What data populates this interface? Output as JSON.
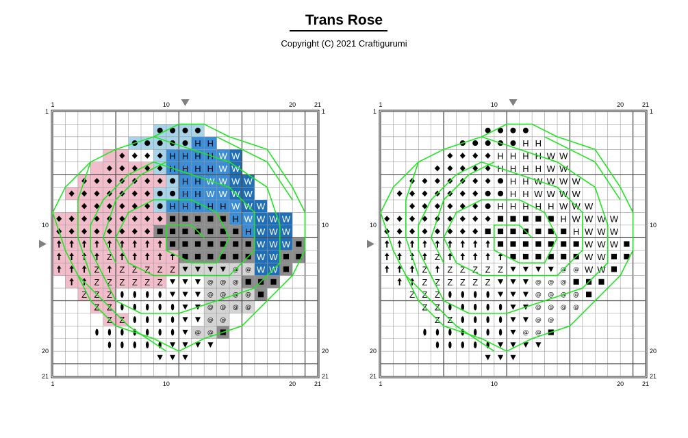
{
  "page": {
    "title": "Trans Rose",
    "copyright": "Copyright (C) 2021 Craftigurumi"
  },
  "grid": {
    "cols": 21,
    "rows": 21,
    "top_col_labels": [
      "1",
      "10",
      "20",
      "21"
    ],
    "bottom_col_labels": [
      "1",
      "10",
      "20",
      "21"
    ],
    "left_row_labels": [
      "1",
      "10",
      "20",
      "21"
    ],
    "right_row_labels": [
      "1",
      "10",
      "20",
      "21"
    ]
  },
  "colors": {
    "pink": "#f2bccb",
    "light_blue": "#a8d4ea",
    "blue": "#3a8dd6",
    "dark_blue": "#1f6fb8",
    "dark_gray": "#8c8c8c",
    "light_gray": "#d4d4d4",
    "outline": "#1ee61e",
    "grid_line": "#9a9a9a",
    "grid_major": "#4a4a4a"
  },
  "symbol_key": {
    "o": "filled-circle",
    "d": "filled-diamond",
    "u": "up-arrow",
    "Z": "letter-Z",
    "e": "filled-ellipse",
    "v": "down-triangle",
    "@": "at-sign",
    "s": "filled-square",
    "H": "letter-H",
    "W": "letter-W"
  },
  "pattern": [
    ".....................",
    "........oooo.........",
    "......oooooHH........",
    ".....ddddHHHHWW......",
    "....dddddHHHHWW......",
    "..dddddddoHHWWWW.....",
    ".dddddddooHHWWWW.....",
    "..ddddddoHHHHHWWW....",
    "dddddddddsssssHWWWW..",
    "ddddddddsssssssHWWW..",
    "uuuuuuuuusssssssWWWs.",
    "uuuuZuuuuussssssWWss.",
    "uuuZuZZZZZvvvv@@WWs..",
    ".uuZZZZZZvvv@@@sss...",
    "..ZZZeeeevvv@@@@s....",
    "...ZZeeeeevv@@@@.....",
    "....ZZeeeevv@@.......",
    "...eeeeeeev@@s.......",
    "....eeeeevvvv........",
    "........vvv..........",
    "....................."
  ],
  "color_regions": [
    {
      "color": "pink",
      "cells": [
        [
          3,
          4
        ],
        [
          3,
          5
        ],
        [
          4,
          3
        ],
        [
          4,
          4
        ],
        [
          4,
          5
        ],
        [
          4,
          6
        ],
        [
          4,
          7
        ],
        [
          5,
          2
        ],
        [
          5,
          3
        ],
        [
          5,
          4
        ],
        [
          5,
          5
        ],
        [
          5,
          6
        ],
        [
          5,
          7
        ],
        [
          5,
          8
        ],
        [
          6,
          1
        ],
        [
          6,
          2
        ],
        [
          6,
          3
        ],
        [
          6,
          4
        ],
        [
          6,
          5
        ],
        [
          6,
          6
        ],
        [
          6,
          7
        ],
        [
          7,
          2
        ],
        [
          7,
          3
        ],
        [
          7,
          4
        ],
        [
          7,
          5
        ],
        [
          7,
          6
        ],
        [
          7,
          7
        ],
        [
          8,
          0
        ],
        [
          8,
          1
        ],
        [
          8,
          2
        ],
        [
          8,
          3
        ],
        [
          8,
          4
        ],
        [
          8,
          5
        ],
        [
          8,
          6
        ],
        [
          8,
          7
        ],
        [
          8,
          8
        ],
        [
          9,
          0
        ],
        [
          9,
          1
        ],
        [
          9,
          2
        ],
        [
          9,
          3
        ],
        [
          9,
          4
        ],
        [
          9,
          5
        ],
        [
          9,
          6
        ],
        [
          9,
          7
        ],
        [
          10,
          0
        ],
        [
          10,
          1
        ],
        [
          10,
          2
        ],
        [
          10,
          3
        ],
        [
          10,
          4
        ],
        [
          10,
          5
        ],
        [
          10,
          6
        ],
        [
          10,
          7
        ],
        [
          10,
          8
        ],
        [
          11,
          0
        ],
        [
          11,
          1
        ],
        [
          11,
          2
        ],
        [
          11,
          3
        ],
        [
          11,
          4
        ],
        [
          11,
          5
        ],
        [
          11,
          6
        ],
        [
          11,
          7
        ],
        [
          11,
          8
        ],
        [
          11,
          9
        ],
        [
          12,
          0
        ],
        [
          12,
          1
        ],
        [
          12,
          2
        ],
        [
          12,
          3
        ],
        [
          12,
          4
        ],
        [
          12,
          5
        ],
        [
          12,
          6
        ],
        [
          12,
          7
        ],
        [
          12,
          8
        ],
        [
          12,
          9
        ],
        [
          13,
          1
        ],
        [
          13,
          2
        ],
        [
          13,
          3
        ],
        [
          13,
          4
        ],
        [
          13,
          5
        ],
        [
          13,
          6
        ],
        [
          13,
          7
        ],
        [
          13,
          8
        ],
        [
          14,
          2
        ],
        [
          14,
          3
        ],
        [
          14,
          4
        ],
        [
          15,
          3
        ],
        [
          15,
          4
        ],
        [
          16,
          4
        ],
        [
          16,
          5
        ]
      ]
    },
    {
      "color": "light_blue",
      "cells": [
        [
          1,
          8
        ],
        [
          1,
          9
        ],
        [
          1,
          10
        ],
        [
          1,
          11
        ],
        [
          2,
          6
        ],
        [
          2,
          7
        ],
        [
          2,
          8
        ],
        [
          2,
          9
        ],
        [
          2,
          10
        ],
        [
          3,
          8
        ],
        [
          4,
          8
        ],
        [
          5,
          9
        ],
        [
          6,
          8
        ],
        [
          6,
          9
        ],
        [
          7,
          8
        ]
      ]
    },
    {
      "color": "blue",
      "cells": [
        [
          2,
          11
        ],
        [
          2,
          12
        ],
        [
          3,
          9
        ],
        [
          3,
          10
        ],
        [
          3,
          11
        ],
        [
          3,
          12
        ],
        [
          4,
          9
        ],
        [
          4,
          10
        ],
        [
          4,
          11
        ],
        [
          4,
          12
        ],
        [
          5,
          10
        ],
        [
          5,
          11
        ],
        [
          6,
          10
        ],
        [
          6,
          11
        ],
        [
          7,
          9
        ],
        [
          7,
          10
        ],
        [
          7,
          11
        ],
        [
          7,
          12
        ],
        [
          7,
          13
        ],
        [
          8,
          14
        ],
        [
          9,
          15
        ],
        [
          3,
          13
        ],
        [
          4,
          13
        ],
        [
          5,
          12
        ],
        [
          5,
          13
        ],
        [
          6,
          12
        ],
        [
          6,
          13
        ],
        [
          7,
          14
        ],
        [
          8,
          15
        ]
      ]
    },
    {
      "color": "dark_blue",
      "cells": [
        [
          3,
          14
        ],
        [
          4,
          14
        ],
        [
          5,
          14
        ],
        [
          5,
          15
        ],
        [
          6,
          14
        ],
        [
          6,
          15
        ],
        [
          7,
          15
        ],
        [
          7,
          16
        ],
        [
          8,
          16
        ],
        [
          8,
          17
        ],
        [
          8,
          18
        ],
        [
          9,
          16
        ],
        [
          9,
          17
        ],
        [
          9,
          18
        ],
        [
          10,
          16
        ],
        [
          10,
          17
        ],
        [
          10,
          18
        ],
        [
          11,
          16
        ],
        [
          11,
          17
        ],
        [
          12,
          16
        ],
        [
          12,
          17
        ]
      ]
    },
    {
      "color": "dark_gray",
      "cells": [
        [
          8,
          9
        ],
        [
          8,
          10
        ],
        [
          8,
          11
        ],
        [
          8,
          12
        ],
        [
          8,
          13
        ],
        [
          9,
          8
        ],
        [
          9,
          9
        ],
        [
          9,
          10
        ],
        [
          9,
          11
        ],
        [
          9,
          12
        ],
        [
          9,
          13
        ],
        [
          9,
          14
        ],
        [
          10,
          9
        ],
        [
          10,
          10
        ],
        [
          10,
          11
        ],
        [
          10,
          12
        ],
        [
          10,
          13
        ],
        [
          10,
          14
        ],
        [
          10,
          15
        ],
        [
          10,
          19
        ],
        [
          11,
          10
        ],
        [
          11,
          11
        ],
        [
          11,
          12
        ],
        [
          11,
          13
        ],
        [
          11,
          14
        ],
        [
          11,
          15
        ],
        [
          11,
          18
        ],
        [
          11,
          19
        ],
        [
          12,
          18
        ],
        [
          13,
          15
        ],
        [
          13,
          16
        ],
        [
          13,
          17
        ],
        [
          14,
          16
        ],
        [
          17,
          13
        ]
      ]
    },
    {
      "color": "light_gray",
      "cells": [
        [
          12,
          10
        ],
        [
          12,
          11
        ],
        [
          12,
          12
        ],
        [
          12,
          13
        ],
        [
          12,
          14
        ],
        [
          12,
          15
        ],
        [
          13,
          12
        ],
        [
          13,
          13
        ],
        [
          13,
          14
        ],
        [
          14,
          12
        ],
        [
          14,
          13
        ],
        [
          14,
          14
        ],
        [
          14,
          15
        ],
        [
          15,
          12
        ],
        [
          15,
          13
        ],
        [
          15,
          14
        ],
        [
          15,
          15
        ],
        [
          16,
          12
        ],
        [
          16,
          13
        ],
        [
          17,
          11
        ],
        [
          17,
          12
        ]
      ]
    }
  ],
  "charts": [
    {
      "id": "colored",
      "grid_left": 77,
      "grid_top": 163,
      "cell": 18.43,
      "show_colors": true
    },
    {
      "id": "symbols",
      "grid_left": 556,
      "grid_top": 163,
      "cell": 18.43,
      "show_colors": false
    }
  ]
}
